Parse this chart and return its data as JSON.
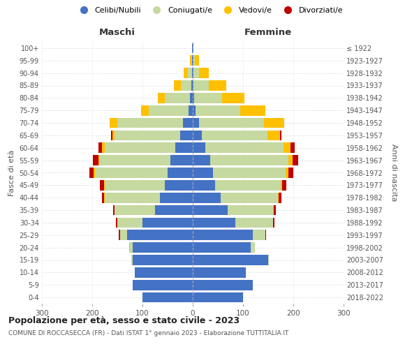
{
  "age_groups": [
    "0-4",
    "5-9",
    "10-14",
    "15-19",
    "20-24",
    "25-29",
    "30-34",
    "35-39",
    "40-44",
    "45-49",
    "50-54",
    "55-59",
    "60-64",
    "65-69",
    "70-74",
    "75-79",
    "80-84",
    "85-89",
    "90-94",
    "95-99",
    "100+"
  ],
  "birth_years": [
    "2018-2022",
    "2013-2017",
    "2008-2012",
    "2003-2007",
    "1998-2002",
    "1993-1997",
    "1988-1992",
    "1983-1987",
    "1978-1982",
    "1973-1977",
    "1968-1972",
    "1963-1967",
    "1958-1962",
    "1953-1957",
    "1948-1952",
    "1943-1947",
    "1938-1942",
    "1933-1937",
    "1928-1932",
    "1923-1927",
    "≤ 1922"
  ],
  "colors": {
    "celibinubili": "#4472c4",
    "coniugati": "#c5d9a0",
    "vedovi": "#ffc000",
    "divorziati": "#c00000"
  },
  "maschi": {
    "celibinubili": [
      100,
      120,
      115,
      120,
      120,
      130,
      100,
      75,
      65,
      55,
      50,
      45,
      35,
      25,
      20,
      8,
      5,
      3,
      2,
      1,
      1
    ],
    "coniugati": [
      0,
      0,
      0,
      2,
      5,
      15,
      50,
      80,
      110,
      120,
      145,
      140,
      140,
      130,
      130,
      80,
      50,
      20,
      8,
      2,
      0
    ],
    "vedovi": [
      0,
      0,
      0,
      0,
      1,
      0,
      0,
      0,
      1,
      2,
      2,
      3,
      5,
      5,
      15,
      15,
      15,
      15,
      8,
      3,
      0
    ],
    "divorziati": [
      0,
      0,
      0,
      0,
      0,
      2,
      3,
      3,
      5,
      8,
      8,
      10,
      8,
      3,
      0,
      0,
      0,
      0,
      0,
      0,
      0
    ]
  },
  "femmine": {
    "celibinubili": [
      100,
      120,
      105,
      150,
      115,
      120,
      85,
      70,
      55,
      45,
      40,
      35,
      25,
      18,
      12,
      5,
      3,
      2,
      2,
      1,
      1
    ],
    "coniugati": [
      0,
      0,
      0,
      2,
      8,
      25,
      75,
      90,
      115,
      130,
      145,
      155,
      155,
      130,
      130,
      90,
      55,
      30,
      10,
      3,
      0
    ],
    "vedovi": [
      0,
      0,
      0,
      0,
      0,
      0,
      0,
      1,
      1,
      3,
      5,
      8,
      15,
      25,
      40,
      50,
      45,
      35,
      20,
      8,
      1
    ],
    "divorziati": [
      0,
      0,
      0,
      0,
      0,
      1,
      3,
      4,
      5,
      8,
      10,
      12,
      8,
      3,
      0,
      0,
      0,
      0,
      0,
      0,
      0
    ]
  },
  "title": "Popolazione per età, sesso e stato civile - 2023",
  "subtitle": "COMUNE DI ROCCASECCA (FR) - Dati ISTAT 1° gennaio 2023 - Elaborazione TUTTITALIA.IT",
  "xlabel_left": "Maschi",
  "xlabel_right": "Femmine",
  "ylabel_left": "Fasce di età",
  "ylabel_right": "Anni di nascita",
  "xlim": 300,
  "legend_labels": [
    "Celibi/Nubili",
    "Coniugati/e",
    "Vedovi/e",
    "Divorziati/e"
  ],
  "background_color": "#ffffff"
}
